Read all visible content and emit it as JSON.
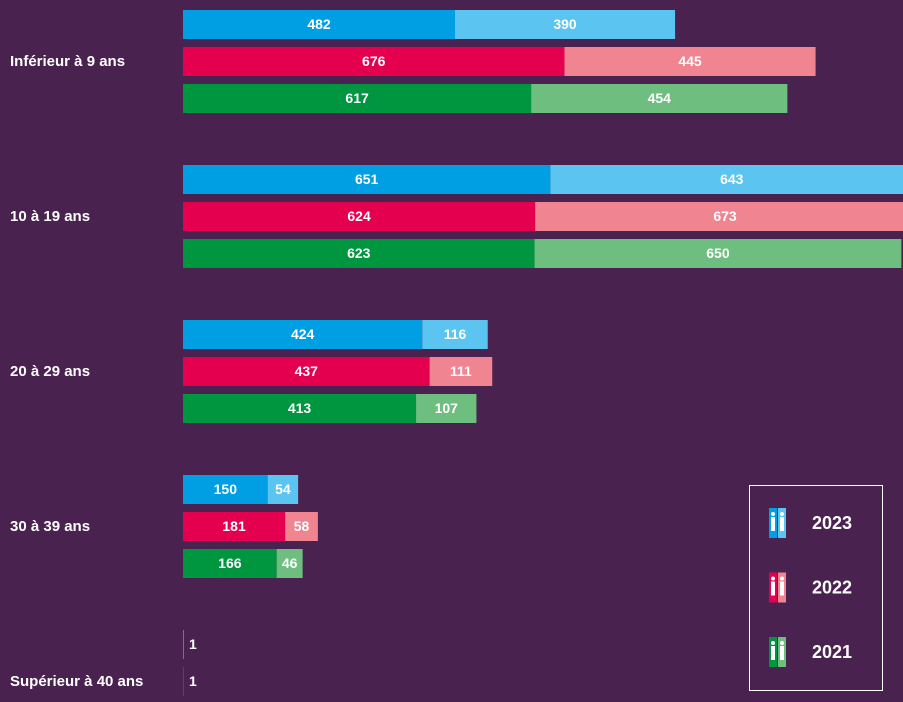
{
  "chart_data": {
    "type": "bar",
    "orientation": "horizontal",
    "stacked": true,
    "categories": [
      "Inférieur à 9 ans",
      "10 à 19 ans",
      "20 à 29 ans",
      "30 à 39 ans",
      "Supérieur à 40 ans"
    ],
    "series": [
      {
        "name": "2023",
        "colors": [
          "#009ee2",
          "#5bc4f1"
        ],
        "values": [
          [
            482,
            390
          ],
          [
            651,
            643
          ],
          [
            424,
            116
          ],
          [
            150,
            54
          ],
          [
            1,
            null
          ]
        ]
      },
      {
        "name": "2022",
        "colors": [
          "#e5004f",
          "#f08490"
        ],
        "values": [
          [
            676,
            445
          ],
          [
            624,
            673
          ],
          [
            437,
            111
          ],
          [
            181,
            58
          ],
          [
            1,
            null
          ]
        ]
      },
      {
        "name": "2021",
        "colors": [
          "#009640",
          "#6ebe80"
        ],
        "values": [
          [
            617,
            454
          ],
          [
            623,
            650
          ],
          [
            413,
            107
          ],
          [
            166,
            46
          ],
          [
            null,
            null
          ]
        ]
      }
    ],
    "legend": "bottom-right"
  }
}
